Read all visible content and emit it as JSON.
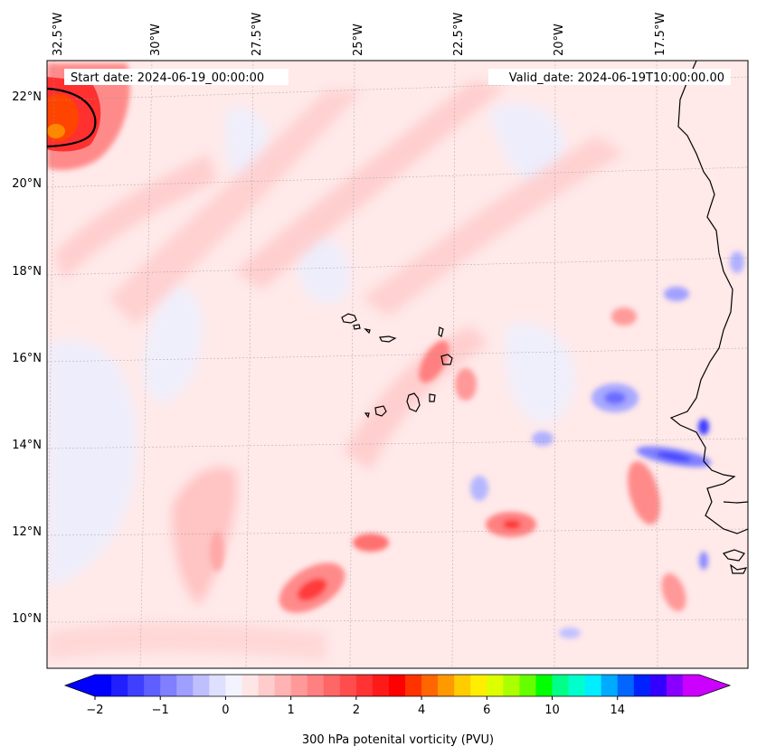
{
  "header": {
    "start_label": "Start date: 2024-06-19_00:00:00",
    "valid_label": "Valid_date: 2024-06-19T10:00:00.00"
  },
  "map": {
    "lon_labels": [
      "32.5°W",
      "30°W",
      "27.5°W",
      "25°W",
      "22.5°W",
      "20°W",
      "17.5°W"
    ],
    "lat_labels": [
      "22°N",
      "20°N",
      "18°N",
      "16°N",
      "14°N",
      "12°N",
      "10°N"
    ],
    "features": {
      "islands": "Cape Verde islands",
      "coast": "West African coastline"
    }
  },
  "colorbar": {
    "title": "300 hPa potenital vorticity (PVU)",
    "ticks": [
      "-2",
      "-1",
      "0",
      "1",
      "2",
      "4",
      "6",
      "10",
      "14"
    ],
    "colors": [
      "#0000ff",
      "#1f1fff",
      "#3f3fff",
      "#5f5fff",
      "#7f7fff",
      "#9f9fff",
      "#bfbfff",
      "#dfdfff",
      "#f3f3ff",
      "#ffe6e6",
      "#ffcccc",
      "#ffb3b3",
      "#ff9999",
      "#ff8080",
      "#ff6666",
      "#ff4d4d",
      "#ff3333",
      "#ff1a1a",
      "#ff0000",
      "#ff3300",
      "#ff6600",
      "#ff9900",
      "#ffcc00",
      "#ffee00",
      "#ddff00",
      "#aaff00",
      "#66ff00",
      "#00ff00",
      "#00ff88",
      "#00ffcc",
      "#00eeff",
      "#00aaff",
      "#0066ff",
      "#0022ff",
      "#3300ff",
      "#8800ff",
      "#cc00ff"
    ],
    "extend_low_color": "#0000ff",
    "extend_high_color": "#cc00ff"
  }
}
